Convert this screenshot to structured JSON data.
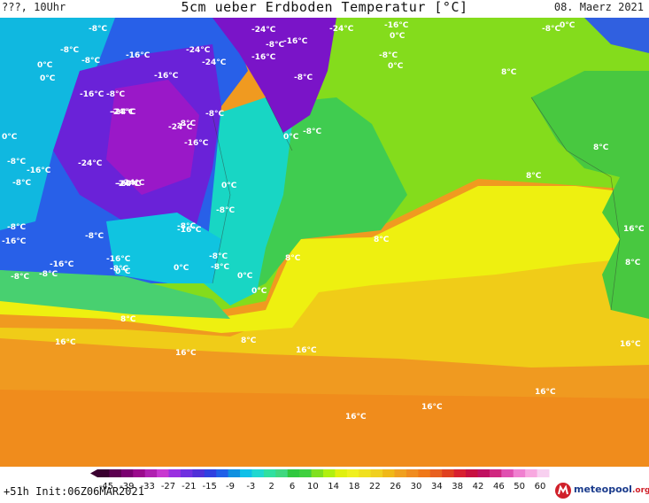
{
  "header": {
    "left": "???, 10Uhr",
    "title": "5cm ueber Erdboden Temperatur [°C]",
    "date": "08. Maerz 2021"
  },
  "footer": {
    "run": "+51h  Init:06Z06MAR2021",
    "logo_main": "meteopool",
    "logo_suffix": ".org"
  },
  "legend": {
    "ticks": [
      "-45",
      "-39",
      "-33",
      "-27",
      "-21",
      "-15",
      "-9",
      "-3",
      "2",
      "6",
      "10",
      "14",
      "18",
      "22",
      "26",
      "30",
      "34",
      "38",
      "42",
      "46",
      "50",
      "60"
    ],
    "colors": [
      "#3a0030",
      "#5c0050",
      "#7a0070",
      "#9a0a8c",
      "#b020b0",
      "#c838d0",
      "#9a30e0",
      "#7030e0",
      "#5030d8",
      "#3040e0",
      "#2060e8",
      "#1090e0",
      "#10c0e8",
      "#20d8d0",
      "#30e0a0",
      "#40d880",
      "#30c840",
      "#40d040",
      "#80e020",
      "#b0f010",
      "#e0f010",
      "#f0f020",
      "#f0e020",
      "#f0d020",
      "#f0b818",
      "#f0a020",
      "#f08c20",
      "#f07818",
      "#e86020",
      "#e04020",
      "#d82030",
      "#c81040",
      "#c01060",
      "#d02880",
      "#e050b0",
      "#f080d0",
      "#f8a8e0",
      "#f8d0f0"
    ]
  },
  "map": {
    "colors": {
      "deep_cold": "#7a14c8",
      "cold": "#5a30e0",
      "cool_blue": "#2860e8",
      "cyan": "#10b8e0",
      "aqua": "#18d8c8",
      "teal_green": "#20d890",
      "green": "#3ccc40",
      "lime": "#8ce01c",
      "yellow": "#eef010",
      "yellow_orange": "#f0d418",
      "orange": "#f0a820",
      "dark_orange": "#f09020",
      "land_green": "#48c840"
    },
    "labels": [
      {
        "t": "-8°C"
      },
      {
        "t": "0°C"
      },
      {
        "t": "-8°C"
      },
      {
        "t": "-16°C"
      },
      {
        "t": "-24°C"
      },
      {
        "t": "-24°C"
      },
      {
        "t": "-24°C"
      },
      {
        "t": "-16°C"
      },
      {
        "t": "-16°C"
      },
      {
        "t": "-24°C"
      },
      {
        "t": "-8°C"
      },
      {
        "t": "-8°C"
      },
      {
        "t": "0°C"
      },
      {
        "t": "-16°C"
      },
      {
        "t": "0°C"
      },
      {
        "t": "-8°C"
      },
      {
        "t": "-8°C"
      },
      {
        "t": "0°C"
      },
      {
        "t": "-16°C"
      },
      {
        "t": "-8°C"
      },
      {
        "t": "0°C"
      },
      {
        "t": "-24°C"
      },
      {
        "t": "-24°C"
      },
      {
        "t": "-8°C"
      },
      {
        "t": "-16°C"
      },
      {
        "t": "-24°C"
      },
      {
        "t": "-16°C"
      },
      {
        "t": "-8°C"
      },
      {
        "t": "-24°C"
      },
      {
        "t": "-8°C"
      },
      {
        "t": "0°C"
      },
      {
        "t": "-16°C"
      },
      {
        "t": "-8°C"
      },
      {
        "t": "-24°C"
      },
      {
        "t": "-24°C"
      },
      {
        "t": "0°C"
      },
      {
        "t": "8°C"
      },
      {
        "t": "-8°C"
      },
      {
        "t": "-16°C"
      },
      {
        "t": "-8°C"
      },
      {
        "t": "-8°C"
      },
      {
        "t": "-16°C"
      },
      {
        "t": "-8°C"
      },
      {
        "t": "8°C"
      },
      {
        "t": "0°C"
      },
      {
        "t": "-8°C"
      },
      {
        "t": "-16°C"
      },
      {
        "t": "-8°C"
      },
      {
        "t": "-16°C"
      },
      {
        "t": "-8°C"
      },
      {
        "t": "0°C"
      },
      {
        "t": "-8°C"
      },
      {
        "t": "0°C"
      },
      {
        "t": "-8°C"
      },
      {
        "t": "0°C"
      },
      {
        "t": "8°C"
      },
      {
        "t": "8°C"
      },
      {
        "t": "16°C"
      },
      {
        "t": "16°C"
      },
      {
        "t": "16°C"
      },
      {
        "t": "8°C"
      },
      {
        "t": "16°C"
      },
      {
        "t": "16°C"
      },
      {
        "t": "16°C"
      },
      {
        "t": "16°C"
      },
      {
        "t": "16°C"
      },
      {
        "t": "-8°C"
      },
      {
        "t": "-8°C"
      },
      {
        "t": "8°C"
      },
      {
        "t": "8°C"
      },
      {
        "t": "8°C"
      },
      {
        "t": "-24°C"
      },
      {
        "t": "0°C"
      }
    ]
  }
}
